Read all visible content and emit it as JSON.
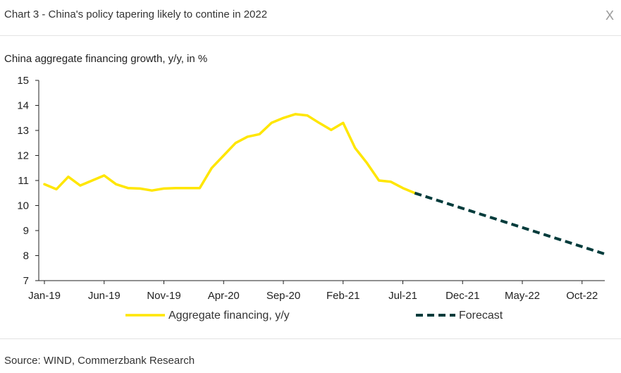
{
  "header": {
    "title": "Chart 3 - China's policy tapering likely to contine in 2022",
    "close_label": "X"
  },
  "footer": {
    "source": "Source: WIND, Commerzbank Research"
  },
  "colors": {
    "actual": "#ffe600",
    "forecast": "#003b3b",
    "axis": "#222222"
  },
  "chart_data": {
    "type": "line",
    "title": "China aggregate financing growth, y/y, in %",
    "xlabel": "",
    "ylabel": "",
    "ylim": [
      7,
      15
    ],
    "yticks": [
      "7",
      "8",
      "9",
      "10",
      "11",
      "12",
      "13",
      "14",
      "15"
    ],
    "xlim": [
      "2019-01",
      "2022-12"
    ],
    "xticks": [
      "Jan-19",
      "Jun-19",
      "Nov-19",
      "Apr-20",
      "Sep-20",
      "Feb-21",
      "Jul-21",
      "Dec-21",
      "May-22",
      "Oct-22"
    ],
    "grid": false,
    "legend": "bottom",
    "series": [
      {
        "name": "Aggregate financing, y/y",
        "style": "solid",
        "x": [
          "2019-01",
          "2019-02",
          "2019-03",
          "2019-04",
          "2019-05",
          "2019-06",
          "2019-07",
          "2019-08",
          "2019-09",
          "2019-10",
          "2019-11",
          "2019-12",
          "2020-01",
          "2020-02",
          "2020-03",
          "2020-04",
          "2020-05",
          "2020-06",
          "2020-07",
          "2020-08",
          "2020-09",
          "2020-10",
          "2020-11",
          "2020-12",
          "2021-01",
          "2021-02",
          "2021-03",
          "2021-04",
          "2021-05",
          "2021-06",
          "2021-07",
          "2021-08"
        ],
        "values": [
          10.85,
          10.65,
          11.15,
          10.8,
          11.0,
          11.2,
          10.85,
          10.7,
          10.68,
          10.6,
          10.68,
          10.7,
          10.7,
          10.7,
          11.5,
          12.0,
          12.5,
          12.75,
          12.85,
          13.3,
          13.5,
          13.65,
          13.6,
          13.3,
          13.02,
          13.3,
          12.3,
          11.7,
          11.0,
          10.95,
          10.7,
          10.5
        ]
      },
      {
        "name": "Forecast",
        "style": "dashed",
        "x": [
          "2021-08",
          "2022-12"
        ],
        "values": [
          10.5,
          8.05
        ]
      }
    ]
  }
}
